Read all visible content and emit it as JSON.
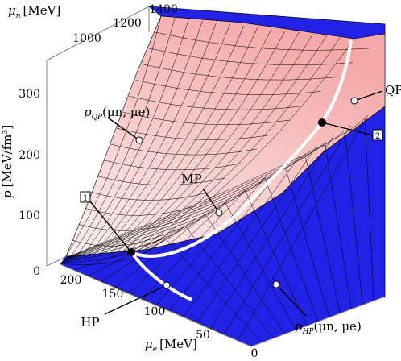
{
  "figure": {
    "colors": {
      "qp_surface_light": "#fdf1f1",
      "qp_surface_dark": "#f4a8a8",
      "hp_surface": "#2222e6",
      "hp_surface_dark": "#1414c8",
      "curve": "#ffffff",
      "box": "#808080"
    }
  },
  "chart_data": {
    "type": "surface3d",
    "axes": {
      "p": {
        "label": "p",
        "unit": "[MeV/fm³]",
        "ticks": [
          "0",
          "100",
          "200",
          "300"
        ]
      },
      "mu_n": {
        "label": "μ",
        "subscript": "n",
        "unit": "[MeV]",
        "ticks": [
          "1000",
          "1200",
          "1400"
        ]
      },
      "mu_e": {
        "label": "μ",
        "subscript": "e",
        "unit": "[MeV]",
        "ticks": [
          "200",
          "150",
          "100",
          "50",
          "0"
        ]
      }
    },
    "surfaces": [
      {
        "name": "QP",
        "function_label": {
          "base": "p",
          "subscript": "QP",
          "args": "(μn, μe)"
        }
      },
      {
        "name": "HP",
        "function_label": {
          "base": "p",
          "subscript": "HP",
          "args": "(μn, μe)"
        }
      }
    ],
    "annotations": [
      {
        "id": "qp",
        "text": "QP"
      },
      {
        "id": "hp",
        "text": "HP"
      },
      {
        "id": "mp",
        "text": "MP"
      },
      {
        "id": "point1",
        "text": "1"
      },
      {
        "id": "point2",
        "text": "2"
      }
    ]
  }
}
